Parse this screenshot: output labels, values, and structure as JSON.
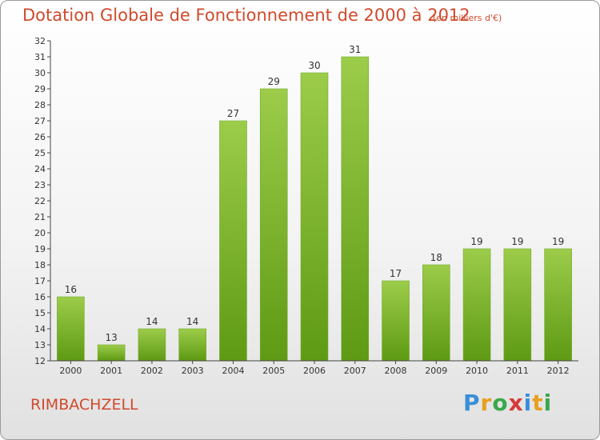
{
  "page": {
    "title": "Dotation Globale de Fonctionnement de 2000 à 2012",
    "subtitle": "(en milliers d'€)",
    "commune": "RIMBACHZELL",
    "logo": {
      "letters": [
        "P",
        "r",
        "o",
        "x",
        "i",
        "t",
        "i"
      ],
      "colors": [
        "#3a8ed8",
        "#e8a020",
        "#3aa84a",
        "#d83a3a",
        "#3a8ed8",
        "#e8a020",
        "#3aa84a"
      ]
    }
  },
  "chart_data": {
    "type": "bar",
    "title": "Dotation Globale de Fonctionnement de 2000 à 2012",
    "categories": [
      "2000",
      "2001",
      "2002",
      "2003",
      "2004",
      "2005",
      "2006",
      "2007",
      "2008",
      "2009",
      "2010",
      "2011",
      "2012"
    ],
    "values": [
      16,
      13,
      14,
      14,
      27,
      29,
      30,
      31,
      17,
      18,
      19,
      19,
      19
    ],
    "data_labels": [
      "16",
      "13",
      "14",
      "14",
      "27",
      "29",
      "30",
      "31",
      "17",
      "18",
      "19",
      "19",
      "19"
    ],
    "ylim": [
      12,
      32
    ],
    "yticks": [
      12,
      13,
      14,
      15,
      16,
      17,
      18,
      19,
      20,
      21,
      22,
      23,
      24,
      25,
      26,
      27,
      28,
      29,
      30,
      31,
      32
    ],
    "grid": false,
    "colors": {
      "bar_light": "#9ccc4a",
      "bar_dark": "#5e9a14",
      "axis": "#444444",
      "text": "#333333"
    }
  }
}
